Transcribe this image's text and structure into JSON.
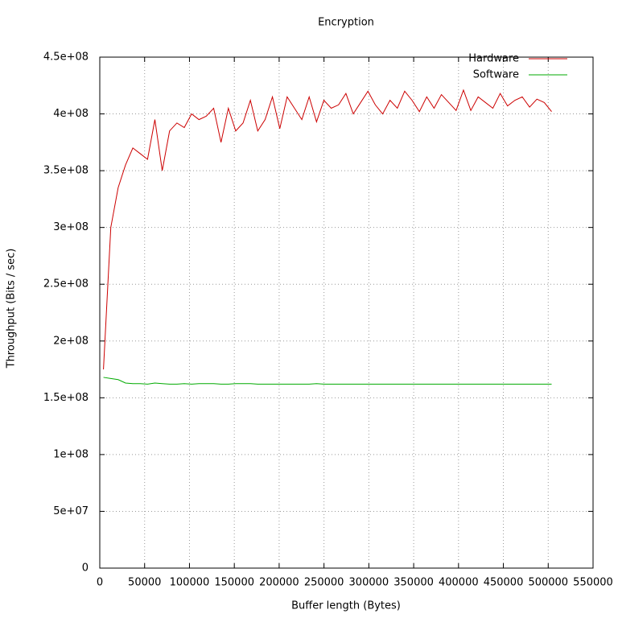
{
  "chart_data": {
    "type": "line",
    "title": "Encryption",
    "xlabel": "Buffer length (Bytes)",
    "ylabel": "Throughput (Bits / sec)",
    "x": [
      4096,
      12288,
      20480,
      28672,
      36864,
      45056,
      53248,
      61440,
      69632,
      77824,
      86016,
      94208,
      102400,
      110592,
      118784,
      126976,
      135168,
      143360,
      151552,
      159744,
      167936,
      176128,
      184320,
      192512,
      200704,
      208896,
      217088,
      225280,
      233472,
      241664,
      249856,
      258048,
      266240,
      274432,
      282624,
      290816,
      299008,
      307200,
      315392,
      323584,
      331776,
      339968,
      348160,
      356352,
      364544,
      372736,
      380928,
      389120,
      397312,
      405504,
      413696,
      421888,
      430080,
      438272,
      446464,
      454656,
      462848,
      471040,
      479232,
      487424,
      495616,
      503808
    ],
    "series": [
      {
        "name": "Hardware",
        "color": "#cc0000",
        "values": [
          175000000,
          300000000,
          335000000,
          355000000,
          370000000,
          365000000,
          360000000,
          395000000,
          350000000,
          385000000,
          392000000,
          388000000,
          400000000,
          395000000,
          398000000,
          405000000,
          375000000,
          405000000,
          385000000,
          392000000,
          412000000,
          385000000,
          395000000,
          415000000,
          387000000,
          415000000,
          405000000,
          395000000,
          415000000,
          393000000,
          412000000,
          405000000,
          408000000,
          418000000,
          400000000,
          410000000,
          420000000,
          408000000,
          400000000,
          412000000,
          405000000,
          420000000,
          412000000,
          402000000,
          415000000,
          405000000,
          417000000,
          410000000,
          403000000,
          421000000,
          403000000,
          415000000,
          410000000,
          405000000,
          418000000,
          407000000,
          412000000,
          415000000,
          406000000,
          413000000,
          410000000,
          402000000
        ]
      },
      {
        "name": "Software",
        "color": "#00aa00",
        "values": [
          168000000,
          167000000,
          166000000,
          163000000,
          162500000,
          162500000,
          162000000,
          163000000,
          162500000,
          162000000,
          162000000,
          162500000,
          162000000,
          162500000,
          162500000,
          162500000,
          162000000,
          162000000,
          162500000,
          162500000,
          162500000,
          162000000,
          162000000,
          162000000,
          162000000,
          162000000,
          162000000,
          162000000,
          162000000,
          162500000,
          162000000,
          162000000,
          162000000,
          162000000,
          162000000,
          162000000,
          162000000,
          162000000,
          162000000,
          162000000,
          162000000,
          162000000,
          162000000,
          162000000,
          162000000,
          162000000,
          162000000,
          162000000,
          162000000,
          162000000,
          162000000,
          162000000,
          162000000,
          162000000,
          162000000,
          162000000,
          162000000,
          162000000,
          162000000,
          162000000,
          162000000,
          162000000
        ]
      }
    ],
    "xlim": [
      0,
      550000
    ],
    "xticks": [
      0,
      50000,
      100000,
      150000,
      200000,
      250000,
      300000,
      350000,
      400000,
      450000,
      500000,
      550000
    ],
    "ylim": [
      0,
      450000000
    ],
    "yticks": [
      0,
      {
        "value": 50000000,
        "label": "5e+07"
      },
      {
        "value": 100000000,
        "label": "1e+08"
      },
      {
        "value": 150000000,
        "label": "1.5e+08"
      },
      {
        "value": 200000000,
        "label": "2e+08"
      },
      {
        "value": 250000000,
        "label": "2.5e+08"
      },
      {
        "value": 300000000,
        "label": "3e+08"
      },
      {
        "value": 350000000,
        "label": "3.5e+08"
      },
      {
        "value": 400000000,
        "label": "4e+08"
      },
      {
        "value": 450000000,
        "label": "4.5e+08"
      }
    ],
    "grid": true,
    "legend": "top-right"
  }
}
